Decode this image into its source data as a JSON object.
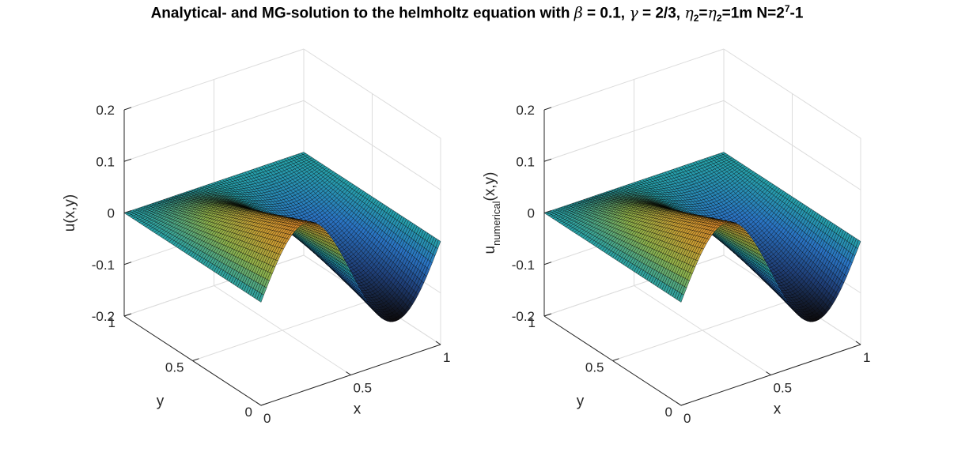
{
  "title": {
    "prefix": "Analytical- and MG-solution to the helmholtz equation with ",
    "beta_sym": "β",
    "beta_val": " = 0.1, ",
    "gamma_sym": "γ",
    "gamma_val": " = 2/3, ",
    "eta_sym_a": "η",
    "eta_sub_a": "2",
    "eta_eq": "=",
    "eta_sym_b": "η",
    "eta_sub_b": "2",
    "eta_val": "=1m N=2",
    "n_exp": "7",
    "n_tail": "-1"
  },
  "chart_data": [
    {
      "type": "surface",
      "name": "analytical",
      "xlabel": "x",
      "ylabel": "y",
      "zlabel": "u(x,y)",
      "xlim": [
        0,
        1
      ],
      "ylim": [
        0,
        1
      ],
      "zlim": [
        -0.2,
        0.2
      ],
      "x_ticks": [
        "0",
        "0.5",
        "1"
      ],
      "y_ticks": [
        "0",
        "0.5",
        "1"
      ],
      "z_ticks": [
        "-0.2",
        "-0.1",
        "0",
        "0.1",
        "0.2"
      ],
      "grid": true,
      "function": "u = 0.125·sin(2πx)·(1−y)",
      "x_samples": [
        0,
        0.125,
        0.25,
        0.375,
        0.5,
        0.625,
        0.75,
        0.875,
        1
      ],
      "u_at_y0": [
        0,
        0.088,
        0.125,
        0.088,
        0,
        -0.088,
        -0.125,
        -0.088,
        0
      ],
      "u_at_y1": [
        0,
        0,
        0,
        0,
        0,
        0,
        0,
        0,
        0
      ]
    },
    {
      "type": "surface",
      "name": "numerical",
      "xlabel": "x",
      "ylabel": "y",
      "zlabel_main": "u",
      "zlabel_sub": "numerical",
      "zlabel_tail": "(x,y)",
      "xlim": [
        0,
        1
      ],
      "ylim": [
        0,
        1
      ],
      "zlim": [
        -0.2,
        0.2
      ],
      "x_ticks": [
        "0",
        "0.5",
        "1"
      ],
      "y_ticks": [
        "0",
        "0.5",
        "1"
      ],
      "z_ticks": [
        "-0.2",
        "-0.1",
        "0",
        "0.1",
        "0.2"
      ],
      "grid": true,
      "function": "u = 0.125·sin(2πx)·(1−y)",
      "x_samples": [
        0,
        0.125,
        0.25,
        0.375,
        0.5,
        0.625,
        0.75,
        0.875,
        1
      ],
      "u_at_y0": [
        0,
        0.088,
        0.125,
        0.088,
        0,
        -0.088,
        -0.125,
        -0.088,
        0
      ],
      "u_at_y1": [
        0,
        0,
        0,
        0,
        0,
        0,
        0,
        0,
        0
      ]
    }
  ],
  "colormap": [
    "#0c0a0c",
    "#1f3f78",
    "#2a74c4",
    "#26a1a8",
    "#8fb24a",
    "#cba033",
    "#dc8a2d"
  ]
}
